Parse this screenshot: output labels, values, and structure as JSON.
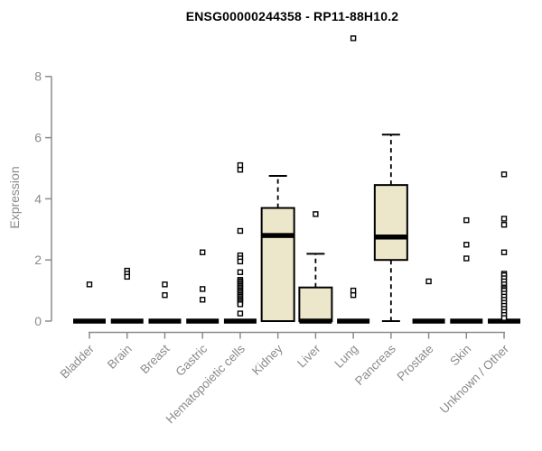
{
  "title": "ENSG00000244358 - RP11-88H10.2",
  "chart_data": {
    "type": "boxplot",
    "title": "ENSG00000244358 - RP11-88H10.2",
    "ylabel": "Expression",
    "xlabel": "",
    "ylim": [
      0,
      8
    ],
    "yticks": [
      0,
      2,
      4,
      6,
      8
    ],
    "grid": false,
    "legend": "none",
    "box_fill_color": "#ECE7CB",
    "box_border_color": "#000000",
    "median_color": "#000000",
    "axis_color": "#8b8b8b",
    "outlier_marker": "open-square",
    "categories": [
      "Bladder",
      "Brain",
      "Breast",
      "Gastric",
      "Hematopoietic cells",
      "Kidney",
      "Liver",
      "Lung",
      "Pancreas",
      "Prostate",
      "Skin",
      "Unknown / Other"
    ],
    "series": [
      {
        "label": "Bladder",
        "q1": 0,
        "median": 0,
        "q3": 0,
        "whisker_low": 0,
        "whisker_high": 0,
        "outliers": [
          1.2
        ]
      },
      {
        "label": "Brain",
        "q1": 0,
        "median": 0,
        "q3": 0,
        "whisker_low": 0,
        "whisker_high": 0,
        "outliers": [
          1.65,
          1.55,
          1.45
        ]
      },
      {
        "label": "Breast",
        "q1": 0,
        "median": 0,
        "q3": 0,
        "whisker_low": 0,
        "whisker_high": 0,
        "outliers": [
          1.2,
          0.85
        ]
      },
      {
        "label": "Gastric",
        "q1": 0,
        "median": 0,
        "q3": 0,
        "whisker_low": 0,
        "whisker_high": 0,
        "outliers": [
          2.25,
          1.05,
          0.7
        ]
      },
      {
        "label": "Hematopoietic cells",
        "q1": 0,
        "median": 0,
        "q3": 0,
        "whisker_low": 0,
        "whisker_high": 0,
        "outliers": [
          5.1,
          4.95,
          2.95,
          2.15,
          2.05,
          1.95,
          1.6,
          1.35,
          1.3,
          1.25,
          1.2,
          1.15,
          1.1,
          1.05,
          1.0,
          0.95,
          0.9,
          0.85,
          0.8,
          0.75,
          0.7,
          0.65,
          0.6,
          0.55,
          0.25
        ]
      },
      {
        "label": "Kidney",
        "q1": 0,
        "median": 2.8,
        "q3": 3.7,
        "whisker_low": 0,
        "whisker_high": 4.75,
        "outliers": []
      },
      {
        "label": "Liver",
        "q1": 0,
        "median": 0,
        "q3": 1.1,
        "whisker_low": 0,
        "whisker_high": 2.2,
        "outliers": [
          3.5
        ]
      },
      {
        "label": "Lung",
        "q1": 0,
        "median": 0,
        "q3": 0,
        "whisker_low": 0,
        "whisker_high": 0,
        "outliers": [
          9.25,
          1.0,
          0.85
        ]
      },
      {
        "label": "Pancreas",
        "q1": 2.0,
        "median": 2.75,
        "q3": 4.45,
        "whisker_low": 0,
        "whisker_high": 6.1,
        "outliers": []
      },
      {
        "label": "Prostate",
        "q1": 0,
        "median": 0,
        "q3": 0,
        "whisker_low": 0,
        "whisker_high": 0,
        "outliers": [
          1.3
        ]
      },
      {
        "label": "Skin",
        "q1": 0,
        "median": 0,
        "q3": 0,
        "whisker_low": 0,
        "whisker_high": 0,
        "outliers": [
          3.3,
          2.5,
          2.05
        ]
      },
      {
        "label": "Unknown / Other",
        "q1": 0,
        "median": 0,
        "q3": 0,
        "whisker_low": 0,
        "whisker_high": 0,
        "outliers": [
          4.8,
          3.35,
          3.15,
          2.25,
          1.55,
          1.5,
          1.4,
          1.3,
          1.2,
          1.1,
          1.05,
          1.0,
          0.9,
          0.8,
          0.7,
          0.6,
          0.5,
          0.4,
          0.3,
          0.2,
          0.1
        ]
      }
    ]
  }
}
